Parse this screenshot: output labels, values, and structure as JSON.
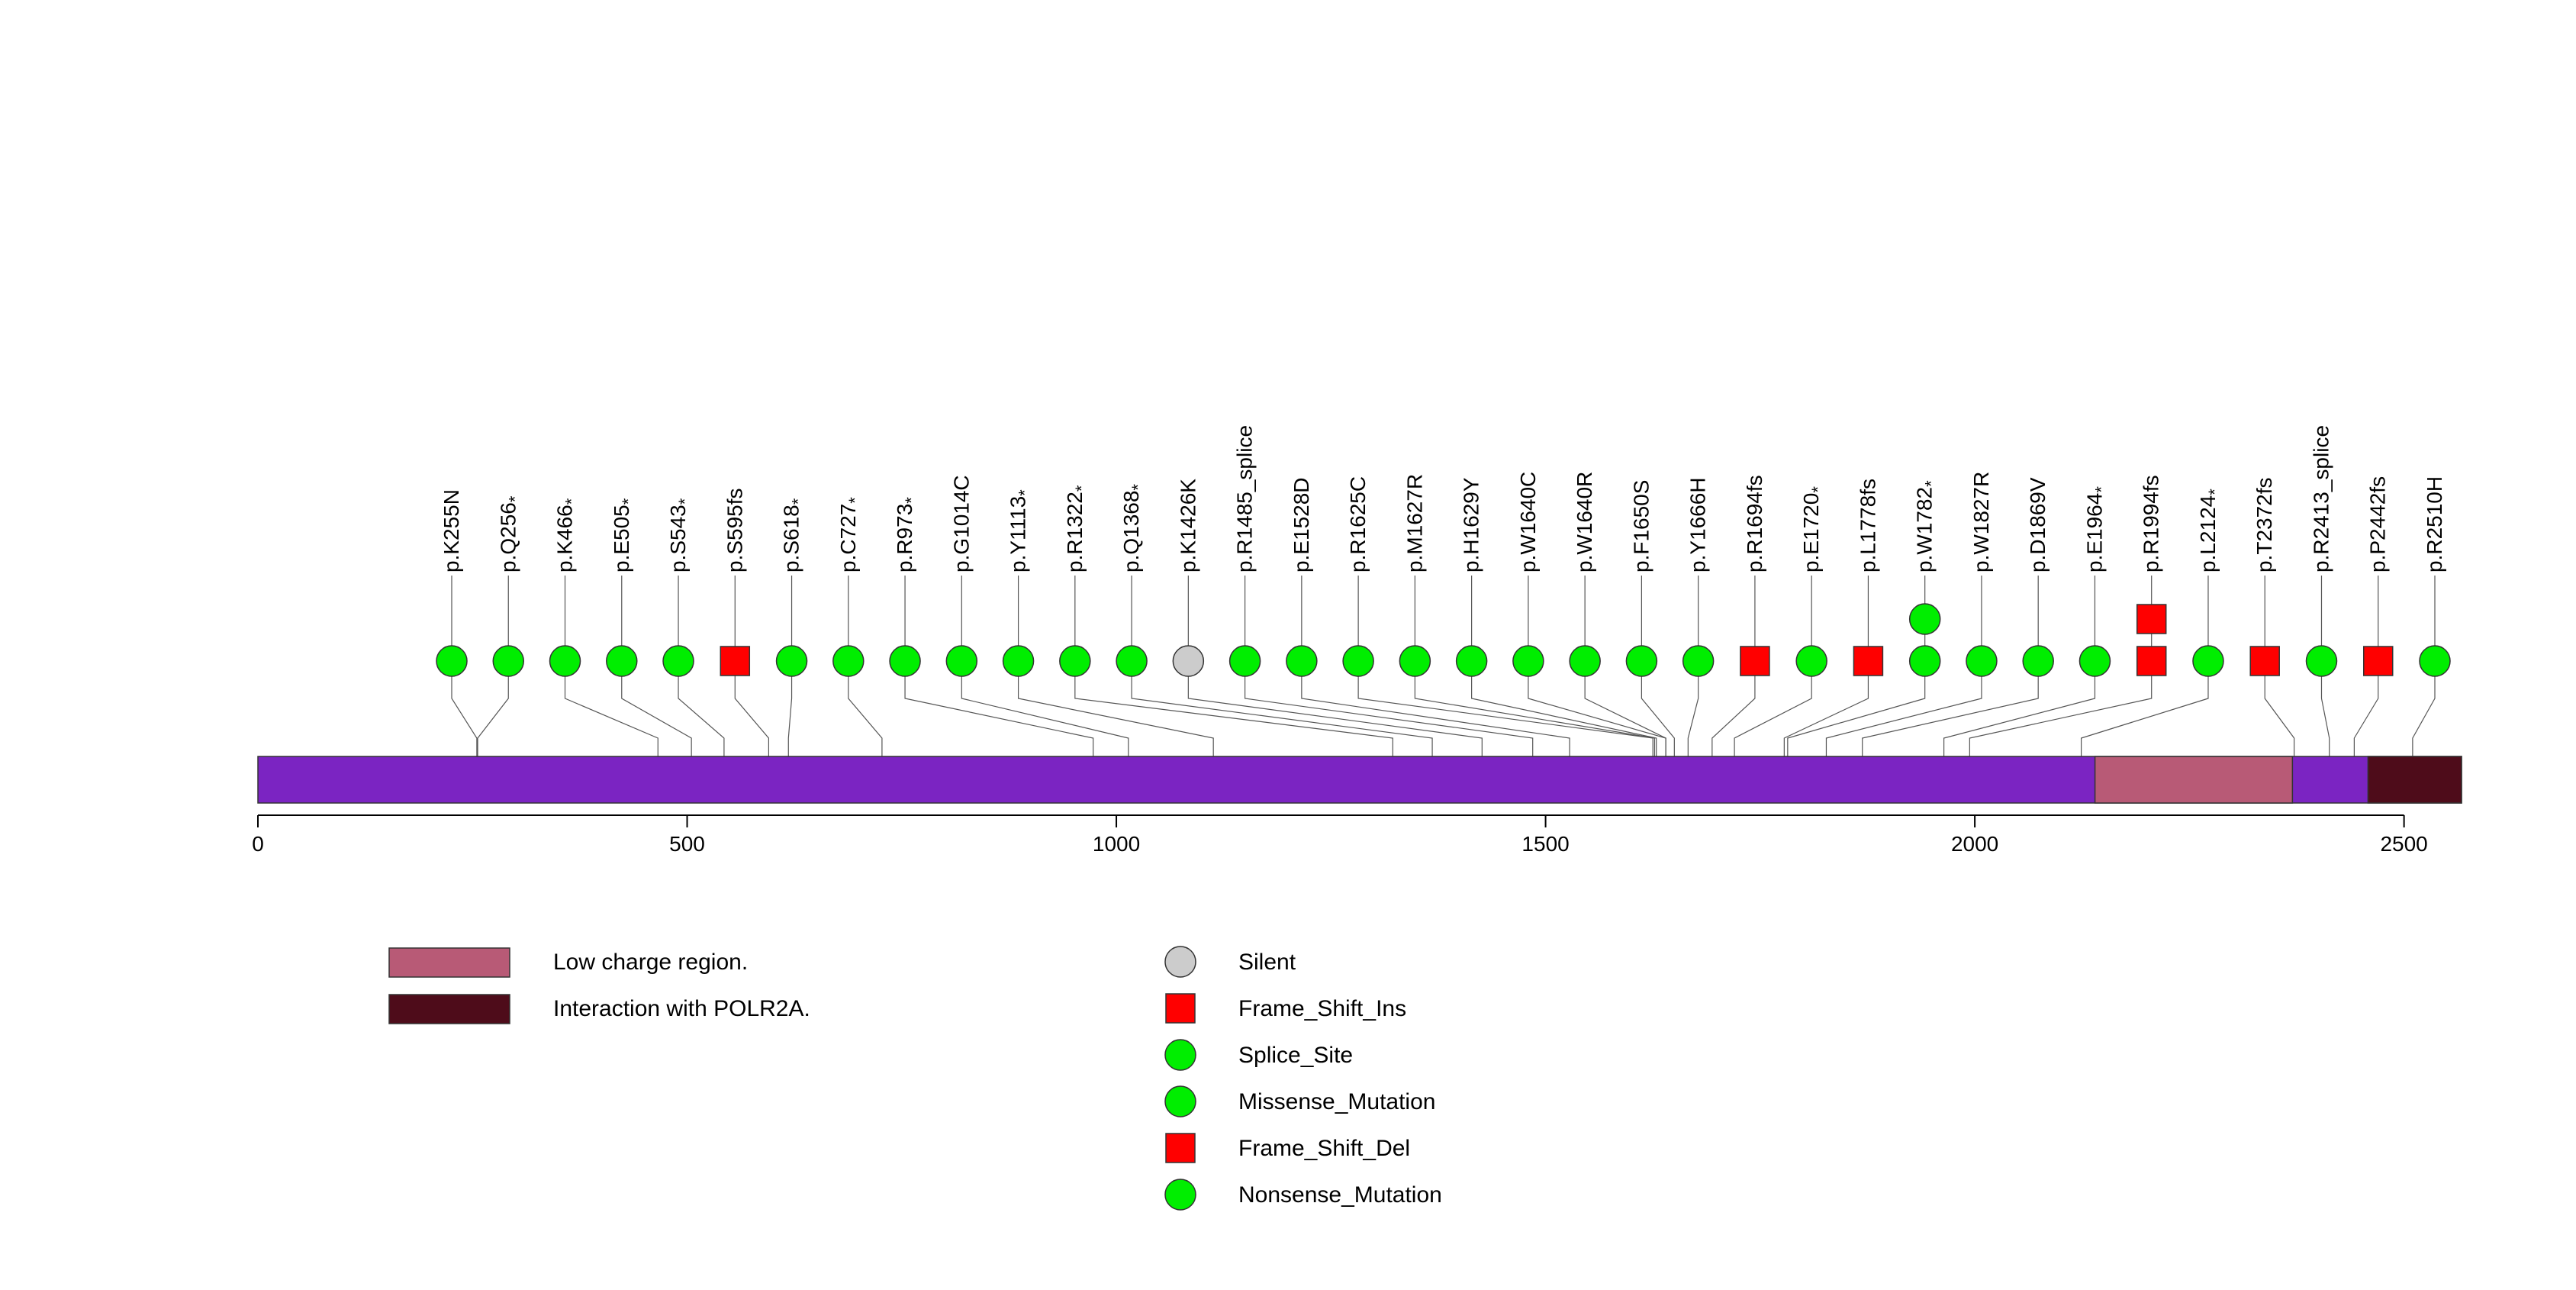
{
  "chart_data": {
    "type": "lollipop",
    "protein_length": 2567,
    "xlim": [
      0,
      2567
    ],
    "x_ticks": [
      0,
      500,
      1000,
      1500,
      2000,
      2500
    ],
    "x_tick_labels": [
      "0",
      "500",
      "1000",
      "1500",
      "2000",
      "2500"
    ],
    "backbone_color": "#7b24c2",
    "domains": [
      {
        "name": "Low charge region.",
        "start": 2140,
        "end": 2370,
        "color": "#b85a76"
      },
      {
        "name": "Interaction with POLR2A.",
        "start": 2458,
        "end": 2567,
        "color": "#4e0c1a"
      }
    ],
    "mutations": [
      {
        "label": "p.K255N",
        "position": 255,
        "type": "Missense_Mutation",
        "count": 1
      },
      {
        "label": "p.Q256*",
        "position": 256,
        "type": "Nonsense_Mutation",
        "count": 1
      },
      {
        "label": "p.K466*",
        "position": 466,
        "type": "Nonsense_Mutation",
        "count": 1
      },
      {
        "label": "p.E505*",
        "position": 505,
        "type": "Nonsense_Mutation",
        "count": 1
      },
      {
        "label": "p.S543*",
        "position": 543,
        "type": "Nonsense_Mutation",
        "count": 1
      },
      {
        "label": "p.S595fs",
        "position": 595,
        "type": "Frame_Shift_Del",
        "count": 1
      },
      {
        "label": "p.S618*",
        "position": 618,
        "type": "Nonsense_Mutation",
        "count": 1
      },
      {
        "label": "p.C727*",
        "position": 727,
        "type": "Nonsense_Mutation",
        "count": 1
      },
      {
        "label": "p.R973*",
        "position": 973,
        "type": "Nonsense_Mutation",
        "count": 1
      },
      {
        "label": "p.G1014C",
        "position": 1014,
        "type": "Missense_Mutation",
        "count": 1
      },
      {
        "label": "p.Y1113*",
        "position": 1113,
        "type": "Nonsense_Mutation",
        "count": 1
      },
      {
        "label": "p.R1322*",
        "position": 1322,
        "type": "Nonsense_Mutation",
        "count": 1
      },
      {
        "label": "p.Q1368*",
        "position": 1368,
        "type": "Nonsense_Mutation",
        "count": 1
      },
      {
        "label": "p.K1426K",
        "position": 1426,
        "type": "Silent",
        "count": 1
      },
      {
        "label": "p.R1485_splice",
        "position": 1485,
        "type": "Splice_Site",
        "count": 1
      },
      {
        "label": "p.E1528D",
        "position": 1528,
        "type": "Missense_Mutation",
        "count": 1
      },
      {
        "label": "p.R1625C",
        "position": 1625,
        "type": "Missense_Mutation",
        "count": 1
      },
      {
        "label": "p.M1627R",
        "position": 1627,
        "type": "Missense_Mutation",
        "count": 1
      },
      {
        "label": "p.H1629Y",
        "position": 1629,
        "type": "Missense_Mutation",
        "count": 1
      },
      {
        "label": "p.W1640C",
        "position": 1640,
        "type": "Missense_Mutation",
        "count": 1
      },
      {
        "label": "p.W1640R",
        "position": 1640,
        "type": "Missense_Mutation",
        "count": 1
      },
      {
        "label": "p.F1650S",
        "position": 1650,
        "type": "Missense_Mutation",
        "count": 1
      },
      {
        "label": "p.Y1666H",
        "position": 1666,
        "type": "Missense_Mutation",
        "count": 1
      },
      {
        "label": "p.R1694fs",
        "position": 1694,
        "type": "Frame_Shift_Ins",
        "count": 1
      },
      {
        "label": "p.E1720*",
        "position": 1720,
        "type": "Nonsense_Mutation",
        "count": 1
      },
      {
        "label": "p.L1778fs",
        "position": 1778,
        "type": "Frame_Shift_Del",
        "count": 1
      },
      {
        "label": "p.W1782*",
        "position": 1782,
        "type": "Nonsense_Mutation",
        "count": 2
      },
      {
        "label": "p.W1827R",
        "position": 1827,
        "type": "Missense_Mutation",
        "count": 1
      },
      {
        "label": "p.D1869V",
        "position": 1869,
        "type": "Missense_Mutation",
        "count": 1
      },
      {
        "label": "p.E1964*",
        "position": 1964,
        "type": "Nonsense_Mutation",
        "count": 1
      },
      {
        "label": "p.R1994fs",
        "position": 1994,
        "type": "Frame_Shift_Del",
        "count": 2
      },
      {
        "label": "p.L2124*",
        "position": 2124,
        "type": "Nonsense_Mutation",
        "count": 1
      },
      {
        "label": "p.T2372fs",
        "position": 2372,
        "type": "Frame_Shift_Del",
        "count": 1
      },
      {
        "label": "p.R2413_splice",
        "position": 2413,
        "type": "Splice_Site",
        "count": 1
      },
      {
        "label": "p.P2442fs",
        "position": 2442,
        "type": "Frame_Shift_Del",
        "count": 1
      },
      {
        "label": "p.R2510H",
        "position": 2510,
        "type": "Missense_Mutation",
        "count": 1
      }
    ],
    "domain_legend": [
      {
        "label": "Low charge region.",
        "color": "#b85a76"
      },
      {
        "label": "Interaction with POLR2A.",
        "color": "#4e0c1a"
      }
    ],
    "mutation_legend": [
      {
        "label": "Silent",
        "shape": "circle",
        "color": "#cccccc"
      },
      {
        "label": "Frame_Shift_Ins",
        "shape": "square",
        "color": "#ff0000"
      },
      {
        "label": "Splice_Site",
        "shape": "circle",
        "color": "#00ee00"
      },
      {
        "label": "Missense_Mutation",
        "shape": "circle",
        "color": "#00ee00"
      },
      {
        "label": "Frame_Shift_Del",
        "shape": "square",
        "color": "#ff0000"
      },
      {
        "label": "Nonsense_Mutation",
        "shape": "circle",
        "color": "#00ee00"
      }
    ]
  }
}
